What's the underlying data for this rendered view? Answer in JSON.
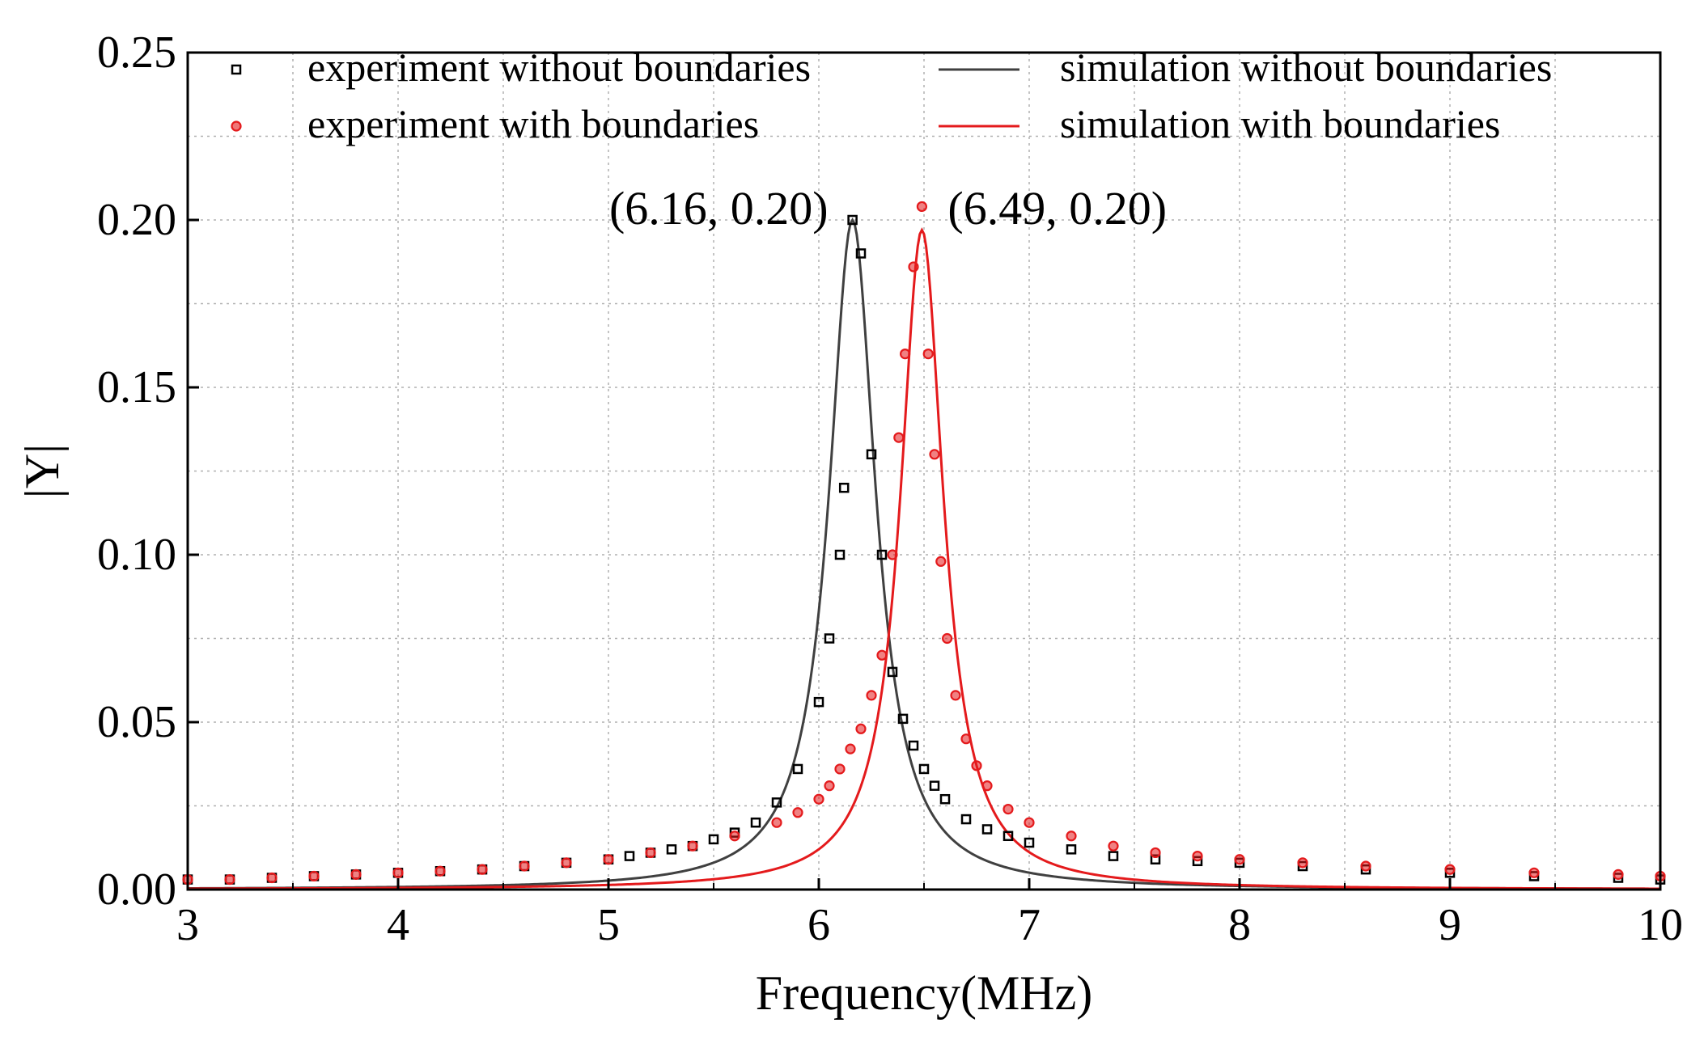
{
  "chart_data": {
    "type": "line",
    "xlabel": "Frequency(MHz)",
    "ylabel": "|Y|",
    "xlim": [
      3,
      10
    ],
    "ylim": [
      0,
      0.25
    ],
    "xticks": [
      3,
      4,
      5,
      6,
      7,
      8,
      9,
      10
    ],
    "xtick_labels": [
      "3",
      "4",
      "5",
      "6",
      "7",
      "8",
      "9",
      "10"
    ],
    "yticks": [
      0,
      0.05,
      0.1,
      0.15,
      0.2,
      0.25
    ],
    "ytick_labels": [
      "0.00",
      "0.05",
      "0.10",
      "0.15",
      "0.20",
      "0.25"
    ],
    "grid": true,
    "legend_position": "top",
    "series": [
      {
        "name": "experiment without boundaries",
        "kind": "scatter",
        "marker": "square",
        "color": "#000000",
        "x": [
          3.0,
          3.2,
          3.4,
          3.6,
          3.8,
          4.0,
          4.2,
          4.4,
          4.6,
          4.8,
          5.0,
          5.1,
          5.2,
          5.3,
          5.4,
          5.5,
          5.6,
          5.7,
          5.8,
          5.9,
          6.0,
          6.05,
          6.1,
          6.12,
          6.16,
          6.2,
          6.25,
          6.3,
          6.35,
          6.4,
          6.45,
          6.5,
          6.55,
          6.6,
          6.7,
          6.8,
          6.9,
          7.0,
          7.2,
          7.4,
          7.6,
          7.8,
          8.0,
          8.3,
          8.6,
          9.0,
          9.4,
          9.8,
          10.0
        ],
        "y": [
          0.003,
          0.003,
          0.0035,
          0.004,
          0.0045,
          0.005,
          0.0055,
          0.006,
          0.007,
          0.008,
          0.009,
          0.01,
          0.011,
          0.012,
          0.013,
          0.015,
          0.017,
          0.02,
          0.026,
          0.036,
          0.056,
          0.075,
          0.1,
          0.12,
          0.2,
          0.19,
          0.13,
          0.1,
          0.065,
          0.051,
          0.043,
          0.036,
          0.031,
          0.027,
          0.021,
          0.018,
          0.016,
          0.014,
          0.012,
          0.01,
          0.009,
          0.0085,
          0.008,
          0.007,
          0.006,
          0.005,
          0.004,
          0.0035,
          0.003
        ]
      },
      {
        "name": "experiment with boundaries",
        "kind": "scatter",
        "marker": "circle",
        "color": "#e41a1c",
        "x": [
          3.0,
          3.2,
          3.4,
          3.6,
          3.8,
          4.0,
          4.2,
          4.4,
          4.6,
          4.8,
          5.0,
          5.2,
          5.4,
          5.6,
          5.8,
          5.9,
          6.0,
          6.05,
          6.1,
          6.15,
          6.2,
          6.25,
          6.3,
          6.35,
          6.38,
          6.41,
          6.45,
          6.49,
          6.52,
          6.55,
          6.58,
          6.61,
          6.65,
          6.7,
          6.75,
          6.8,
          6.9,
          7.0,
          7.2,
          7.4,
          7.6,
          7.8,
          8.0,
          8.3,
          8.6,
          9.0,
          9.4,
          9.8,
          10.0
        ],
        "y": [
          0.003,
          0.003,
          0.0035,
          0.004,
          0.0045,
          0.005,
          0.0055,
          0.006,
          0.007,
          0.008,
          0.009,
          0.011,
          0.013,
          0.016,
          0.02,
          0.023,
          0.027,
          0.031,
          0.036,
          0.042,
          0.048,
          0.058,
          0.07,
          0.1,
          0.135,
          0.16,
          0.186,
          0.204,
          0.16,
          0.13,
          0.098,
          0.075,
          0.058,
          0.045,
          0.037,
          0.031,
          0.024,
          0.02,
          0.016,
          0.013,
          0.011,
          0.01,
          0.009,
          0.008,
          0.007,
          0.006,
          0.005,
          0.0045,
          0.004
        ]
      },
      {
        "name": "simulation without boundaries",
        "kind": "line",
        "color": "#404040",
        "peak_x": 6.16,
        "peak_y": 0.2,
        "half_width": 0.135,
        "baseline": 0.0
      },
      {
        "name": "simulation with boundaries",
        "kind": "line",
        "color": "#e41a1c",
        "peak_x": 6.49,
        "peak_y": 0.197,
        "half_width": 0.125,
        "baseline": 0.0
      }
    ],
    "annotations": [
      {
        "text": "(6.16, 0.20)",
        "x": 6.16,
        "y": 0.2,
        "anchor": "left-of-peak"
      },
      {
        "text": "(6.49, 0.20)",
        "x": 6.49,
        "y": 0.2,
        "anchor": "right-of-peak"
      }
    ]
  }
}
